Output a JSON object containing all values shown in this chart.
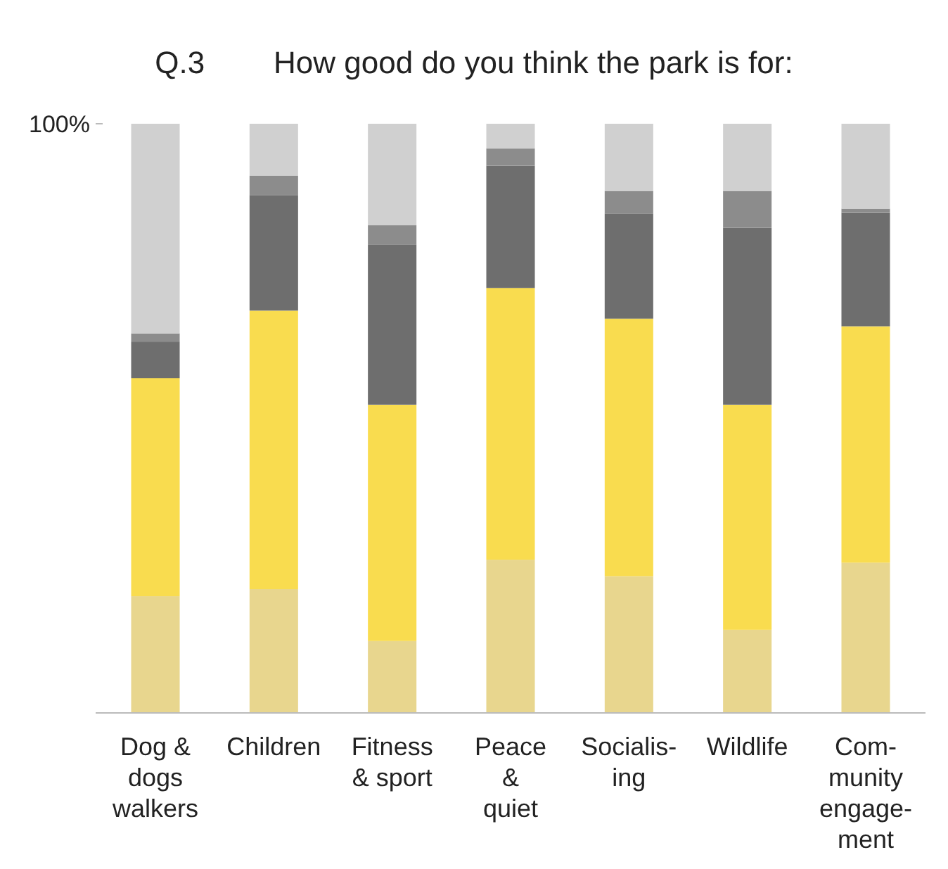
{
  "chart_data": {
    "type": "bar",
    "title": "Q.3        How good do you think the park is for:",
    "stacked": true,
    "categories": [
      "Dog &\ndogs\nwalkers",
      "Children",
      "Fitness\n& sport",
      "Peace\n&\nquiet",
      "Socialis-\ning",
      "Wildlife",
      "Com-\nmunity\nengage-\nment"
    ],
    "ylim": [
      0,
      100
    ],
    "yticks": [
      {
        "value": 0,
        "label": null
      },
      {
        "value": 100,
        "label": "100%"
      }
    ],
    "series": [
      {
        "color": "#e8d68e",
        "values": [
          19.8,
          21,
          12.2,
          26,
          23.2,
          14.1,
          25.5
        ]
      },
      {
        "color": "#f9dc4f",
        "values": [
          37,
          47.3,
          40.1,
          46.1,
          43.7,
          38.2,
          40.1
        ]
      },
      {
        "color": "#6e6e6e",
        "values": [
          6.2,
          19.6,
          27.2,
          20.8,
          17.9,
          30.1,
          19.3
        ]
      },
      {
        "color": "#8c8c8c",
        "values": [
          1.4,
          3.3,
          3.3,
          2.9,
          3.8,
          6.2,
          0.7
        ]
      },
      {
        "color": "#d0d0d0",
        "values": [
          35.6,
          8.8,
          17.2,
          4.2,
          11.4,
          11.4,
          14.4
        ]
      }
    ]
  }
}
